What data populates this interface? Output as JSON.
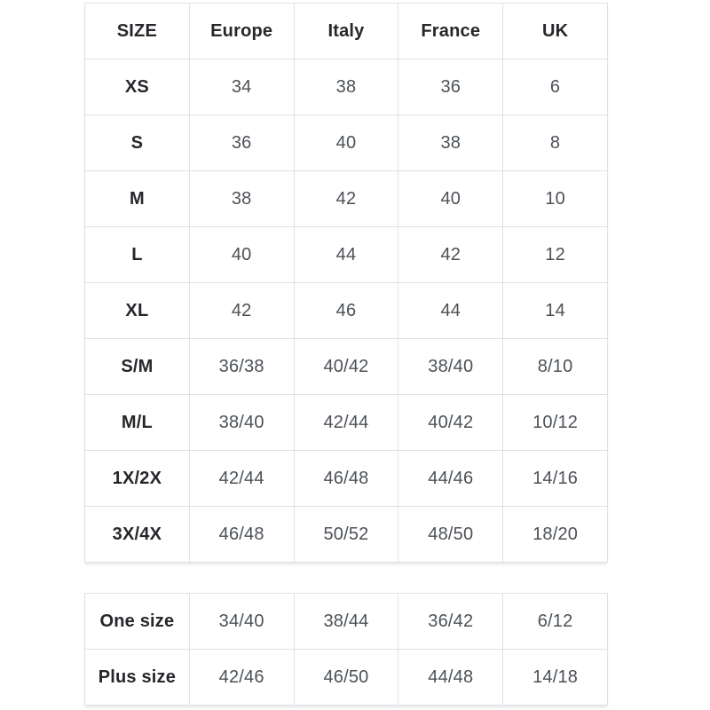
{
  "colors": {
    "background": "#ffffff",
    "border": "#dee2e6",
    "header_text": "#26262b",
    "cell_text": "#4c5157"
  },
  "tables": [
    {
      "name": "standard-sizes",
      "columns": [
        "SIZE",
        "Europe",
        "Italy",
        "France",
        "UK"
      ],
      "rows": [
        {
          "label": "XS",
          "values": [
            "34",
            "38",
            "36",
            "6"
          ]
        },
        {
          "label": "S",
          "values": [
            "36",
            "40",
            "38",
            "8"
          ]
        },
        {
          "label": "M",
          "values": [
            "38",
            "42",
            "40",
            "10"
          ]
        },
        {
          "label": "L",
          "values": [
            "40",
            "44",
            "42",
            "12"
          ]
        },
        {
          "label": "XL",
          "values": [
            "42",
            "46",
            "44",
            "14"
          ]
        },
        {
          "label": "S/M",
          "values": [
            "36/38",
            "40/42",
            "38/40",
            "8/10"
          ]
        },
        {
          "label": "M/L",
          "values": [
            "38/40",
            "42/44",
            "40/42",
            "10/12"
          ]
        },
        {
          "label": "1X/2X",
          "values": [
            "42/44",
            "46/48",
            "44/46",
            "14/16"
          ]
        },
        {
          "label": "3X/4X",
          "values": [
            "46/48",
            "50/52",
            "48/50",
            "18/20"
          ]
        }
      ]
    },
    {
      "name": "special-sizes",
      "rows": [
        {
          "label": "One size",
          "values": [
            "34/40",
            "38/44",
            "36/42",
            "6/12"
          ]
        },
        {
          "label": "Plus size",
          "values": [
            "42/46",
            "46/50",
            "44/48",
            "14/18"
          ]
        }
      ]
    }
  ]
}
